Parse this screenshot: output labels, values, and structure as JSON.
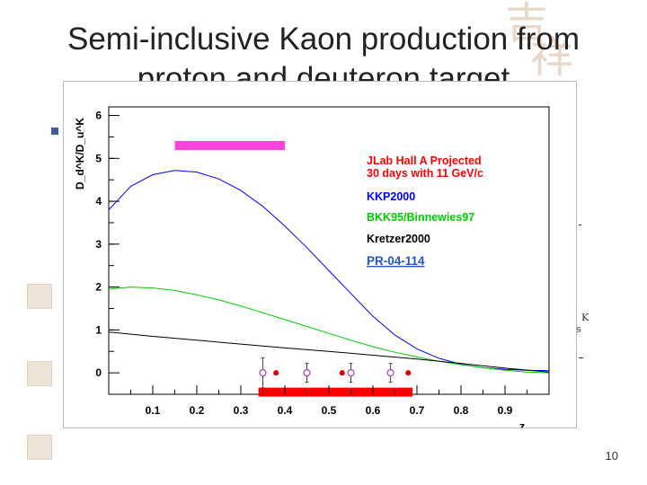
{
  "slide": {
    "title": "Semi-inclusive Kaon production from proton and deuteron target",
    "page_number": "10",
    "right_fragment_1": "K",
    "right_fragment_2": "s"
  },
  "colors": {
    "jlab": "#ff0000",
    "kkp": "#0000ff",
    "bkk": "#00cc00",
    "kretzer": "#000000",
    "band": "#ff44dd",
    "link": "#2255cc"
  },
  "chart_data": {
    "type": "line",
    "xlabel": "z",
    "ylabel": "D_d^K/D_u^K",
    "xlim": [
      0.0,
      1.0
    ],
    "ylim": [
      -0.5,
      6.2
    ],
    "x_ticks": [
      "0.1",
      "0.2",
      "0.3",
      "0.4",
      "0.5",
      "0.6",
      "0.7",
      "0.8",
      "0.9"
    ],
    "y_ticks": [
      "0",
      "1",
      "2",
      "3",
      "4",
      "5",
      "6"
    ],
    "legend": [
      {
        "label": "JLab Hall A Projected",
        "color": "#ff0000"
      },
      {
        "label": "30 days with 11 GeV/c",
        "color": "#ff0000"
      },
      {
        "label": "KKP2000",
        "color": "#0000ff"
      },
      {
        "label": "BKK95/Binnewies97",
        "color": "#00cc00"
      },
      {
        "label": "Kretzer2000",
        "color": "#000000"
      }
    ],
    "annotation": "PR-04-114",
    "series": [
      {
        "name": "KKP2000",
        "color": "#0000ff",
        "x": [
          0.0,
          0.05,
          0.1,
          0.15,
          0.2,
          0.25,
          0.3,
          0.35,
          0.4,
          0.45,
          0.5,
          0.55,
          0.6,
          0.65,
          0.7,
          0.75,
          0.8,
          0.85,
          0.9,
          0.95,
          1.0
        ],
        "y": [
          3.8,
          4.35,
          4.62,
          4.72,
          4.68,
          4.52,
          4.25,
          3.88,
          3.42,
          2.92,
          2.38,
          1.85,
          1.32,
          0.88,
          0.56,
          0.34,
          0.2,
          0.12,
          0.08,
          0.06,
          0.05
        ]
      },
      {
        "name": "BKK95/Binnewies97",
        "color": "#00cc00",
        "x": [
          0.0,
          0.05,
          0.1,
          0.15,
          0.2,
          0.25,
          0.3,
          0.35,
          0.4,
          0.45,
          0.5,
          0.55,
          0.6,
          0.65,
          0.7,
          0.75,
          0.8,
          0.85,
          0.9,
          0.95,
          1.0
        ],
        "y": [
          1.95,
          2.0,
          1.98,
          1.92,
          1.82,
          1.7,
          1.56,
          1.4,
          1.24,
          1.08,
          0.92,
          0.76,
          0.61,
          0.48,
          0.37,
          0.27,
          0.19,
          0.12,
          0.06,
          0.02,
          0.0
        ]
      },
      {
        "name": "Kretzer2000",
        "color": "#000000",
        "x": [
          0.0,
          0.1,
          0.2,
          0.3,
          0.4,
          0.5,
          0.6,
          0.7,
          0.8,
          0.9,
          1.0
        ],
        "y": [
          0.95,
          0.85,
          0.76,
          0.67,
          0.58,
          0.5,
          0.41,
          0.32,
          0.22,
          0.11,
          0.02
        ]
      }
    ],
    "projected_points": [
      {
        "x": 0.35,
        "y": 0.0,
        "err": 0.35,
        "marker": "open"
      },
      {
        "x": 0.38,
        "y": 0.0,
        "err": 0.0,
        "marker": "filled"
      },
      {
        "x": 0.45,
        "y": 0.0,
        "err": 0.22,
        "marker": "open"
      },
      {
        "x": 0.53,
        "y": 0.0,
        "err": 0.0,
        "marker": "filled"
      },
      {
        "x": 0.55,
        "y": 0.0,
        "err": 0.22,
        "marker": "open"
      },
      {
        "x": 0.64,
        "y": 0.0,
        "err": 0.22,
        "marker": "open"
      },
      {
        "x": 0.68,
        "y": 0.0,
        "err": 0.0,
        "marker": "filled"
      }
    ],
    "bands": [
      {
        "x_from": 0.15,
        "x_to": 0.4,
        "y": 5.3,
        "color": "#ff44dd"
      },
      {
        "x_from": 0.34,
        "x_to": 0.69,
        "y": -0.45,
        "color": "#ff0000"
      }
    ]
  }
}
